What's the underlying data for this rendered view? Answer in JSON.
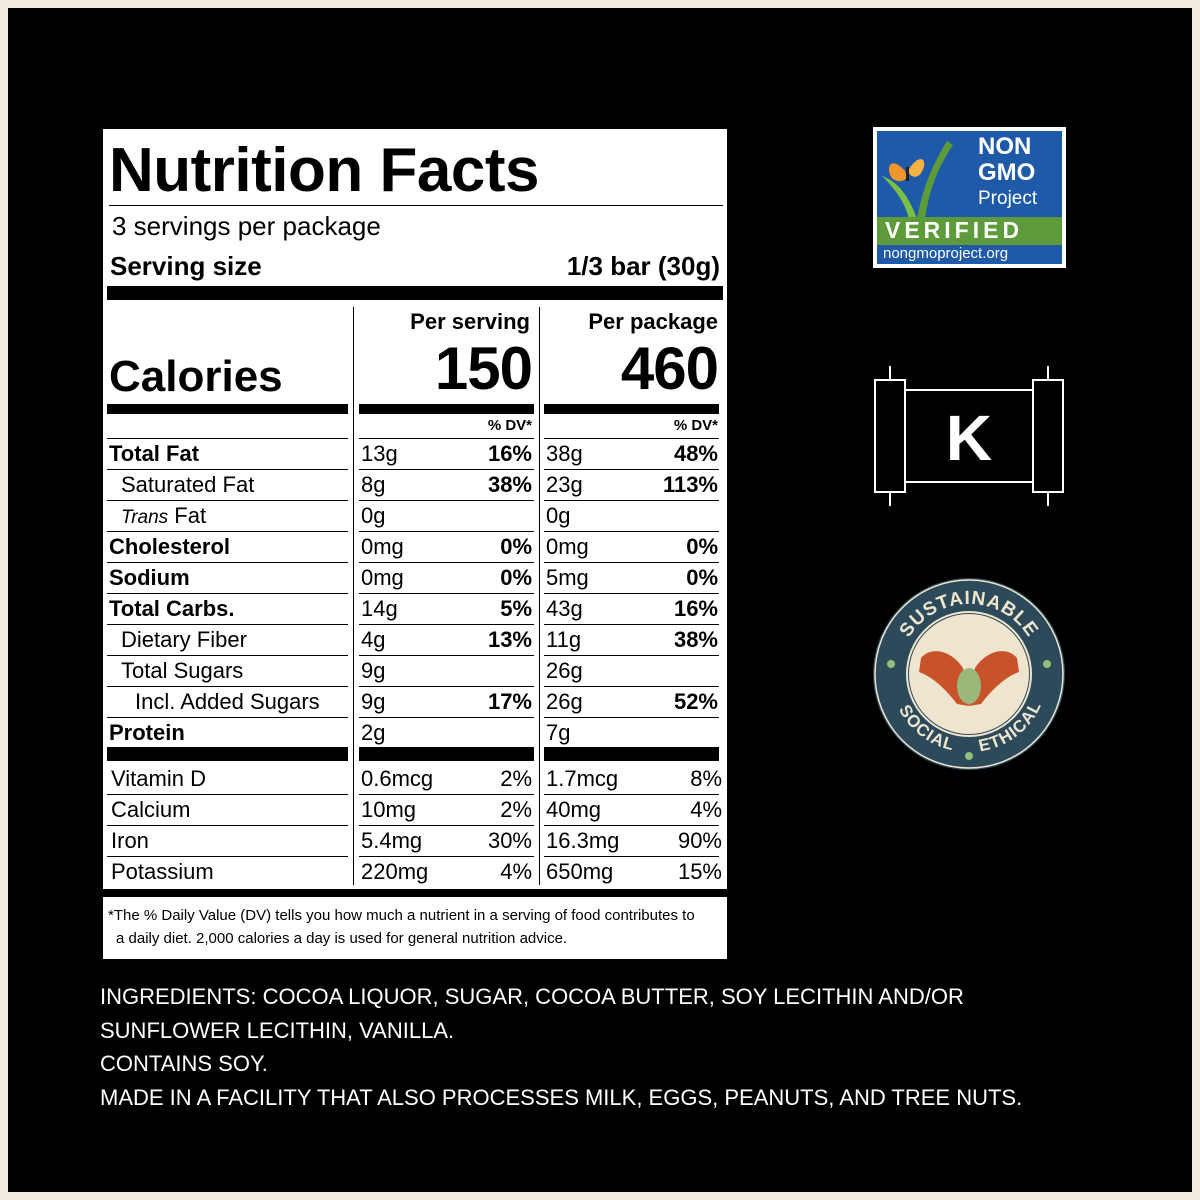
{
  "label": {
    "title": "Nutrition Facts",
    "servings_per_package": "3 servings per package",
    "serving_size_label": "Serving size",
    "serving_size_value": "1/3 bar (30g)",
    "calories_label": "Calories",
    "per_serving_header": "Per serving",
    "per_package_header": "Per package",
    "calories_per_serving": "150",
    "calories_per_package": "460",
    "dv_header": "% DV*",
    "nutrients": [
      {
        "name": "Total Fat",
        "bold": true,
        "indent": 0,
        "s_amt": "13g",
        "s_dv": "16%",
        "p_amt": "38g",
        "p_dv": "48%"
      },
      {
        "name": "Saturated Fat",
        "bold": false,
        "indent": 1,
        "s_amt": "8g",
        "s_dv": "38%",
        "p_amt": "23g",
        "p_dv": "113%"
      },
      {
        "name_italic": "Trans",
        "name": " Fat",
        "bold": false,
        "indent": 1,
        "s_amt": "0g",
        "s_dv": "",
        "p_amt": "0g",
        "p_dv": ""
      },
      {
        "name": "Cholesterol",
        "bold": true,
        "indent": 0,
        "s_amt": "0mg",
        "s_dv": "0%",
        "p_amt": "0mg",
        "p_dv": "0%"
      },
      {
        "name": "Sodium",
        "bold": true,
        "indent": 0,
        "s_amt": "0mg",
        "s_dv": "0%",
        "p_amt": "5mg",
        "p_dv": "0%"
      },
      {
        "name": "Total Carbs.",
        "bold": true,
        "indent": 0,
        "s_amt": "14g",
        "s_dv": "5%",
        "p_amt": "43g",
        "p_dv": "16%"
      },
      {
        "name": "Dietary Fiber",
        "bold": false,
        "indent": 1,
        "s_amt": "4g",
        "s_dv": "13%",
        "p_amt": "11g",
        "p_dv": "38%"
      },
      {
        "name": "Total Sugars",
        "bold": false,
        "indent": 1,
        "s_amt": "9g",
        "s_dv": "",
        "p_amt": "26g",
        "p_dv": ""
      },
      {
        "name": "Incl. Added Sugars",
        "bold": false,
        "indent": 2,
        "s_amt": "9g",
        "s_dv": "17%",
        "p_amt": "26g",
        "p_dv": "52%"
      },
      {
        "name": "Protein",
        "bold": true,
        "indent": 0,
        "s_amt": "2g",
        "s_dv": "",
        "p_amt": "7g",
        "p_dv": ""
      }
    ],
    "vitamins": [
      {
        "name": "Vitamin D",
        "s_amt": "0.6mcg",
        "s_dv": "2%",
        "p_amt": "1.7mcg",
        "p_dv": "8%"
      },
      {
        "name": "Calcium",
        "s_amt": "10mg",
        "s_dv": "2%",
        "p_amt": "40mg",
        "p_dv": "4%"
      },
      {
        "name": "Iron",
        "s_amt": "5.4mg",
        "s_dv": "30%",
        "p_amt": "16.3mg",
        "p_dv": "90%"
      },
      {
        "name": "Potassium",
        "s_amt": "220mg",
        "s_dv": "4%",
        "p_amt": "650mg",
        "p_dv": "15%"
      }
    ],
    "footnote_line1": "*The % Daily Value (DV) tells you how much a nutrient in a serving of food contributes to",
    "footnote_line2": "a daily diet. 2,000 calories a day is used for general nutrition advice."
  },
  "ingredients": {
    "line1": "INGREDIENTS: COCOA LIQUOR, SUGAR, COCOA BUTTER, SOY LECITHIN AND/OR",
    "line2": "SUNFLOWER LECITHIN, VANILLA.",
    "line3": "CONTAINS SOY.",
    "line4": "MADE IN A FACILITY THAT ALSO PROCESSES MILK, EGGS, PEANUTS, AND TREE NUTS."
  },
  "badges": {
    "nongmo_line1": "NON",
    "nongmo_line2": "GMO",
    "nongmo_line3": "Project",
    "nongmo_verified": "VERIFIED",
    "nongmo_url": "nongmoproject.org",
    "kosher_letter": "K",
    "sustainable_top": "SUSTAINABLE",
    "sustainable_left": "SOCIAL",
    "sustainable_right": "ETHICAL"
  },
  "colors": {
    "background": "#000000",
    "nongmo_blue": "#1e5aa8",
    "nongmo_green": "#5c9a3a",
    "seal_blue": "#2c4a5a",
    "seal_cream": "#efe5cf",
    "seal_orange": "#c8532a"
  }
}
